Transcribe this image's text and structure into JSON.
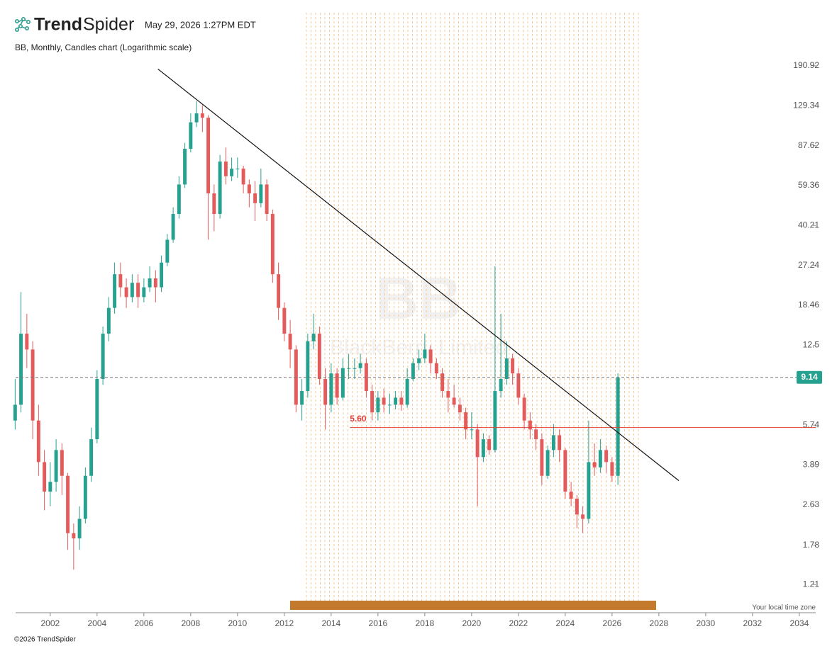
{
  "header": {
    "brand_bold": "Trend",
    "brand_light": "Spider",
    "timestamp": "May 29, 2026 1:27PM EDT"
  },
  "footer": {
    "copyright": "©2026 TrendSpider",
    "timezone": "Your local time zone"
  },
  "chart_data": {
    "type": "candlestick",
    "title": "BB, Monthly, Candles chart (Logarithmic scale)",
    "watermark_symbol": "BB",
    "watermark_name": "BlackBerry Limited",
    "log_scale": true,
    "up_color": "#26a18f",
    "down_color": "#e45b5b",
    "xlim": [
      2000.52,
      2034.7
    ],
    "xticks": [
      2002,
      2004,
      2006,
      2008,
      2010,
      2012,
      2014,
      2016,
      2018,
      2020,
      2022,
      2024,
      2026,
      2028,
      2030,
      2032,
      2034
    ],
    "ylim": [
      0.94,
      216
    ],
    "yticks": [
      1.21,
      1.78,
      2.63,
      3.89,
      5.74,
      12.5,
      18.46,
      27.24,
      40.21,
      59.36,
      87.62,
      129.34,
      190.92
    ],
    "x": [
      2000.5,
      2000.75,
      2001,
      2001.25,
      2001.5,
      2001.75,
      2002,
      2002.25,
      2002.5,
      2002.75,
      2003,
      2003.25,
      2003.5,
      2003.75,
      2004,
      2004.25,
      2004.5,
      2004.75,
      2005,
      2005.25,
      2005.5,
      2005.75,
      2006,
      2006.25,
      2006.5,
      2006.75,
      2007,
      2007.25,
      2007.5,
      2007.75,
      2008,
      2008.25,
      2008.5,
      2008.75,
      2009,
      2009.25,
      2009.5,
      2009.75,
      2010,
      2010.25,
      2010.5,
      2010.75,
      2011,
      2011.25,
      2011.5,
      2011.75,
      2012,
      2012.25,
      2012.5,
      2012.75,
      2013,
      2013.25,
      2013.5,
      2013.75,
      2014,
      2014.25,
      2014.5,
      2014.75,
      2015,
      2015.25,
      2015.5,
      2015.75,
      2016,
      2016.25,
      2016.5,
      2016.75,
      2017,
      2017.25,
      2017.5,
      2017.75,
      2018,
      2018.25,
      2018.5,
      2018.75,
      2019,
      2019.25,
      2019.5,
      2019.75,
      2020,
      2020.25,
      2020.5,
      2020.75,
      2021,
      2021.25,
      2021.5,
      2021.75,
      2022,
      2022.25,
      2022.5,
      2022.75,
      2023,
      2023.25,
      2023.5,
      2023.75,
      2024,
      2024.25,
      2024.5,
      2024.75,
      2025,
      2025.25,
      2025.5,
      2025.75,
      2026,
      2026.25
    ],
    "open": [
      6,
      7,
      14,
      12,
      6,
      4,
      3,
      3.3,
      4.5,
      3.5,
      2,
      1.9,
      2.3,
      3.5,
      5,
      9,
      14,
      18,
      25,
      22,
      20,
      23,
      20,
      22,
      24,
      22,
      28,
      35,
      45,
      60,
      85,
      110,
      120,
      115,
      55,
      45,
      75,
      65,
      70,
      70,
      60,
      55,
      50,
      60,
      45,
      25,
      18,
      14,
      12,
      7,
      8,
      13,
      14,
      9,
      7,
      9.5,
      7.5,
      10,
      10,
      10,
      10.5,
      8,
      6.5,
      7.5,
      7,
      7,
      7.5,
      7,
      9,
      10.5,
      11,
      12,
      10.5,
      9.5,
      8,
      7.5,
      7,
      6.5,
      5.5,
      5.5,
      4.2,
      5,
      4.5,
      8,
      9,
      11,
      9.5,
      7.5,
      6,
      5.5,
      5,
      3.5,
      4.5,
      5.2,
      4.5,
      3,
      2.8,
      2.4,
      2.3,
      4,
      3.8,
      4.5,
      4,
      3.5
    ],
    "high": [
      9,
      21,
      17,
      13,
      7,
      4.5,
      4,
      5,
      4.8,
      3.6,
      2.2,
      2.6,
      3.8,
      5.6,
      9.8,
      15,
      20,
      28,
      28,
      24,
      25,
      25,
      24,
      27,
      26,
      30,
      37,
      48,
      65,
      90,
      120,
      135,
      130,
      118,
      60,
      80,
      86,
      78,
      78,
      72,
      63,
      62,
      70,
      63,
      47,
      28,
      19,
      16,
      12.5,
      9,
      14,
      17,
      15,
      10,
      10.5,
      10,
      11,
      11.5,
      11,
      11.5,
      11,
      8.5,
      8,
      8.2,
      7.8,
      8,
      8,
      10,
      11,
      12,
      14,
      12.5,
      11,
      10,
      9,
      8.5,
      7.5,
      6.8,
      6.5,
      5.8,
      5.3,
      5.2,
      27,
      17,
      13,
      11.5,
      10,
      7.8,
      6.5,
      5.8,
      5.3,
      4.7,
      5.8,
      5.5,
      4.6,
      3.3,
      2.9,
      2.6,
      6,
      4.8,
      5,
      4.7,
      4.2,
      9.5
    ],
    "low": [
      5.5,
      6.5,
      10,
      5,
      3.5,
      2.5,
      2.6,
      3,
      2.9,
      1.7,
      1.4,
      1.7,
      2.2,
      3.3,
      4.8,
      8.5,
      13,
      17,
      20,
      18,
      19,
      18,
      19,
      21,
      19,
      21,
      27,
      34,
      43,
      58,
      82,
      105,
      100,
      35,
      38,
      43,
      60,
      62,
      64,
      55,
      48,
      42,
      48,
      42,
      23,
      16,
      13,
      10,
      6.5,
      6,
      7.5,
      12,
      8.5,
      5.5,
      6.5,
      7,
      7.3,
      9,
      9,
      9.5,
      7.5,
      6,
      6,
      6.5,
      6.4,
      6.7,
      6.6,
      6.8,
      8.8,
      9.8,
      10.5,
      9.5,
      9,
      7.5,
      6.5,
      6.8,
      6,
      5,
      5,
      2.6,
      4,
      4.3,
      4.4,
      7.5,
      8.5,
      8.5,
      7,
      5.5,
      5,
      4.5,
      3.2,
      3.4,
      4.2,
      4,
      2.8,
      2.6,
      2.1,
      2,
      2.2,
      3.5,
      3.6,
      3.6,
      3.3,
      3.2
    ],
    "close": [
      7,
      14,
      12,
      6,
      4,
      3,
      3.3,
      4.5,
      3.5,
      2,
      1.9,
      2.3,
      3.5,
      5,
      9,
      14,
      18,
      25,
      22,
      20,
      23,
      20,
      22,
      24,
      22,
      28,
      35,
      45,
      60,
      85,
      110,
      120,
      115,
      55,
      45,
      75,
      65,
      70,
      70,
      60,
      55,
      50,
      60,
      45,
      25,
      18,
      14,
      12,
      7,
      8,
      13,
      14,
      9,
      7,
      9.5,
      7.5,
      10,
      10,
      10,
      10.5,
      8,
      6.5,
      7.5,
      7,
      7,
      7.5,
      7,
      9,
      10.5,
      11,
      12,
      10.5,
      9.5,
      8,
      7.5,
      7,
      6.5,
      5.5,
      5.5,
      4.2,
      5,
      4.5,
      8,
      9,
      11,
      9.5,
      7.5,
      6,
      5.5,
      5,
      3.5,
      4.5,
      5.2,
      4.5,
      3,
      2.8,
      2.4,
      2.3,
      4,
      3.8,
      4.5,
      4,
      3.5,
      9.14
    ],
    "last_price": {
      "value": 9.14,
      "label": "9.14"
    },
    "level": {
      "value": 5.6,
      "label": "5.60",
      "start_x": 2014.8,
      "color": "#e0403a"
    },
    "trendline": {
      "x": [
        2006.6,
        2028.85
      ],
      "y": [
        185,
        3.34
      ]
    }
  }
}
